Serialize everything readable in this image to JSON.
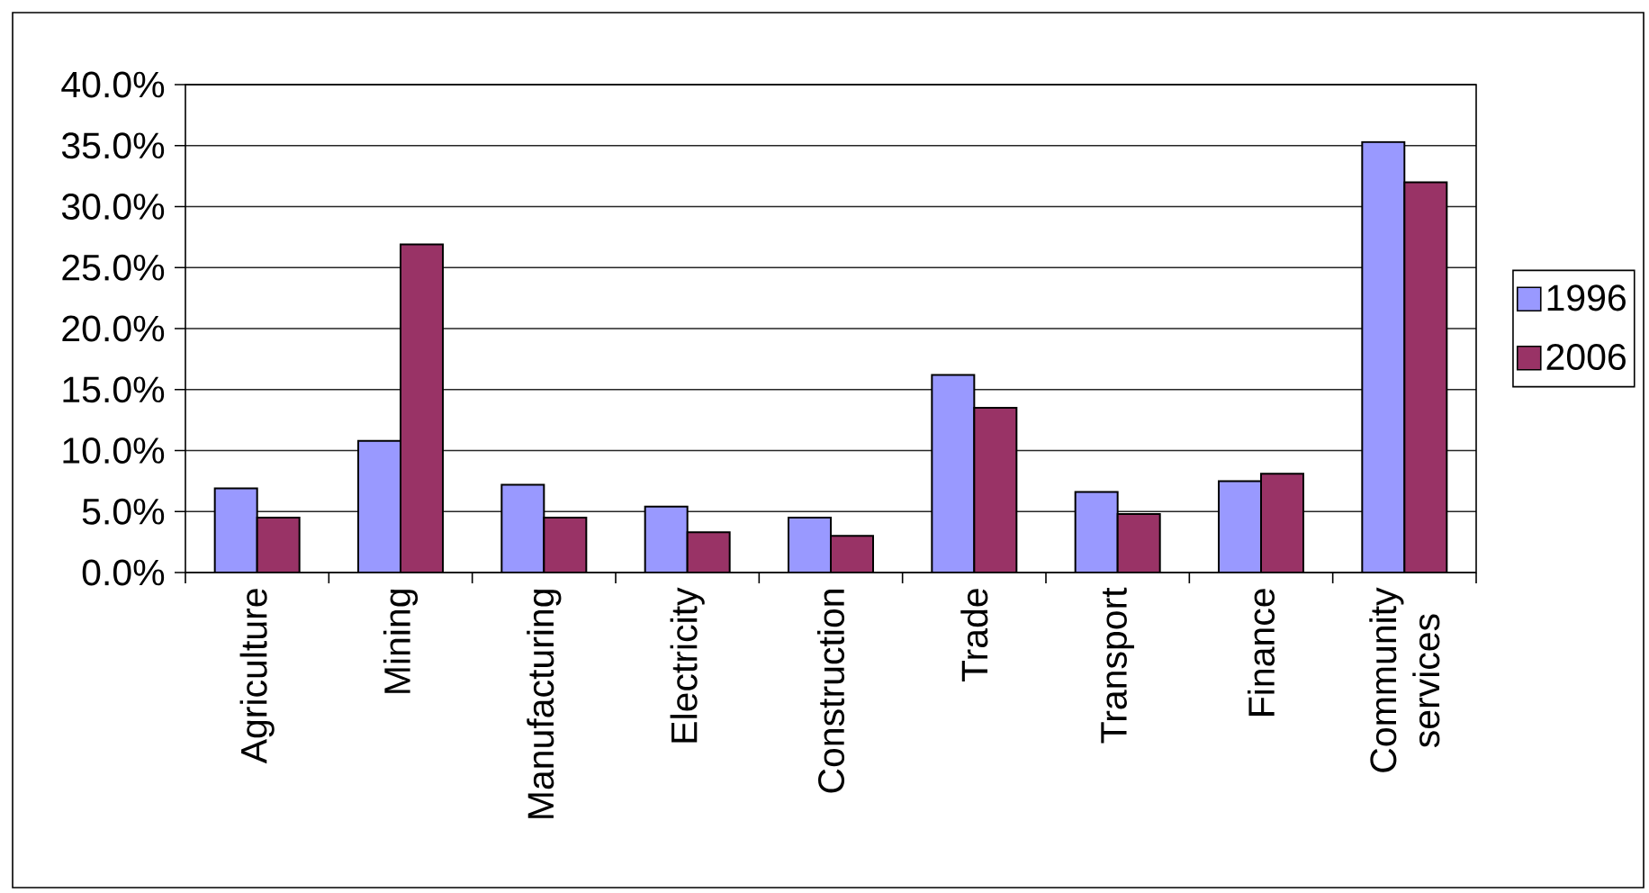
{
  "chart_data": {
    "type": "bar",
    "categories": [
      "Agriculture",
      "Mining",
      "Manufacturing",
      "Electricity",
      "Construction",
      "Trade",
      "Transport",
      "Finance",
      "Community services"
    ],
    "series": [
      {
        "name": "1996",
        "color": "#9999ff",
        "values": [
          6.9,
          10.8,
          7.2,
          5.4,
          4.5,
          16.2,
          6.6,
          7.5,
          35.3
        ]
      },
      {
        "name": "2006",
        "color": "#993366",
        "values": [
          4.5,
          26.9,
          4.5,
          3.3,
          3.0,
          13.5,
          4.8,
          8.1,
          32.0
        ]
      }
    ],
    "ylim": [
      0,
      40
    ],
    "yticks": [
      {
        "value": 0,
        "label": "0.0%"
      },
      {
        "value": 5,
        "label": "5.0%"
      },
      {
        "value": 10,
        "label": "10.0%"
      },
      {
        "value": 15,
        "label": "15.0%"
      },
      {
        "value": 20,
        "label": "20.0%"
      },
      {
        "value": 25,
        "label": "25.0%"
      },
      {
        "value": 30,
        "label": "30.0%"
      },
      {
        "value": 35,
        "label": "35.0%"
      },
      {
        "value": 40,
        "label": "40.0%"
      }
    ],
    "grid": "y",
    "legend": "right"
  }
}
